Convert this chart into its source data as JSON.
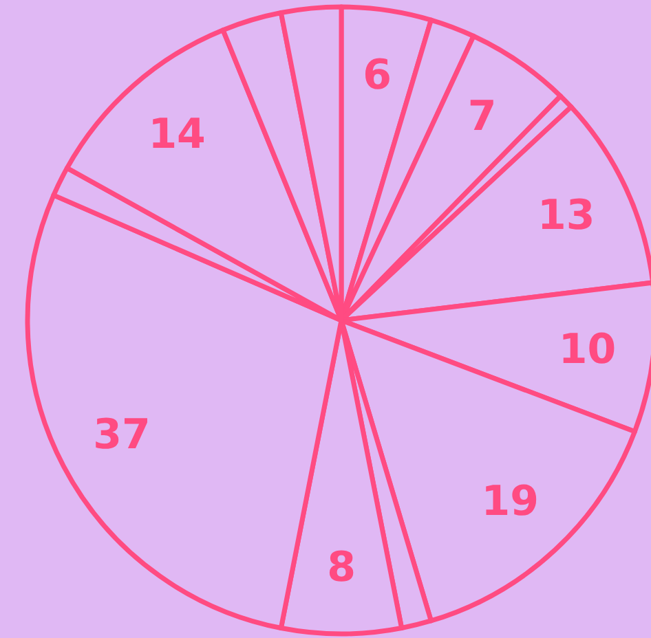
{
  "chart_data": {
    "type": "pie",
    "categories": [
      null,
      null,
      null,
      null,
      null,
      null,
      null,
      null,
      null,
      null,
      null,
      null,
      null,
      null
    ],
    "values": [
      6,
      3,
      7,
      1,
      13,
      10,
      19,
      2,
      8,
      37,
      2,
      14,
      4,
      4
    ],
    "value_labels": [
      "6",
      null,
      "7",
      null,
      "13",
      "10",
      "19",
      null,
      "8",
      "37",
      null,
      "14",
      null,
      null
    ],
    "colors": [
      "#e0b8f4",
      "#e0b8f4",
      "#e0b8f4",
      "#e0b8f4",
      "#e0b8f4",
      "#e0b8f4",
      "#e0b8f4",
      "#e0b8f4",
      "#e0b8f4",
      "#e0b8f4",
      "#e0b8f4",
      "#e0b8f4",
      "#e0b8f4",
      "#e0b8f4"
    ],
    "color": "#ff4b82"
  }
}
